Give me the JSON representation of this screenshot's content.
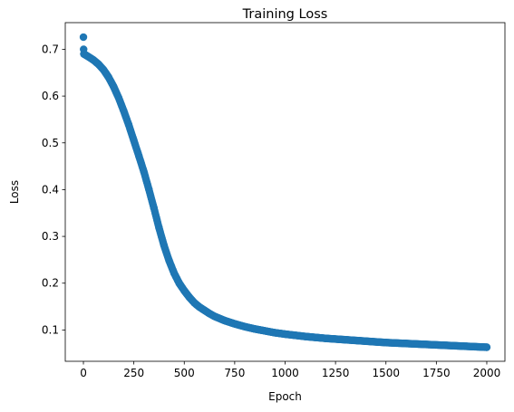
{
  "chart_data": {
    "type": "scatter",
    "title": "Training Loss",
    "xlabel": "Epoch",
    "ylabel": "Loss",
    "xlim": [
      -90,
      2090
    ],
    "ylim": [
      0.033,
      0.757
    ],
    "xticks": [
      0,
      250,
      500,
      750,
      1000,
      1250,
      1500,
      1750,
      2000
    ],
    "yticks": [
      0.1,
      0.2,
      0.3,
      0.4,
      0.5,
      0.6,
      0.7
    ],
    "grid": false,
    "color": "#1f77b4",
    "series": [
      {
        "name": "",
        "x": [
          0,
          1,
          2,
          10,
          25,
          50,
          75,
          100,
          125,
          150,
          175,
          200,
          225,
          250,
          275,
          300,
          325,
          350,
          375,
          400,
          425,
          450,
          475,
          500,
          525,
          550,
          575,
          600,
          625,
          650,
          700,
          750,
          800,
          850,
          900,
          950,
          1000,
          1100,
          1200,
          1300,
          1400,
          1500,
          1600,
          1700,
          1800,
          1900,
          2000
        ],
        "y": [
          0.726,
          0.7,
          0.69,
          0.688,
          0.684,
          0.677,
          0.668,
          0.656,
          0.64,
          0.62,
          0.596,
          0.568,
          0.538,
          0.505,
          0.472,
          0.438,
          0.4,
          0.36,
          0.318,
          0.28,
          0.248,
          0.221,
          0.2,
          0.184,
          0.17,
          0.158,
          0.149,
          0.142,
          0.135,
          0.129,
          0.12,
          0.113,
          0.107,
          0.102,
          0.098,
          0.094,
          0.091,
          0.086,
          0.082,
          0.079,
          0.076,
          0.073,
          0.071,
          0.069,
          0.067,
          0.065,
          0.063
        ]
      }
    ]
  }
}
